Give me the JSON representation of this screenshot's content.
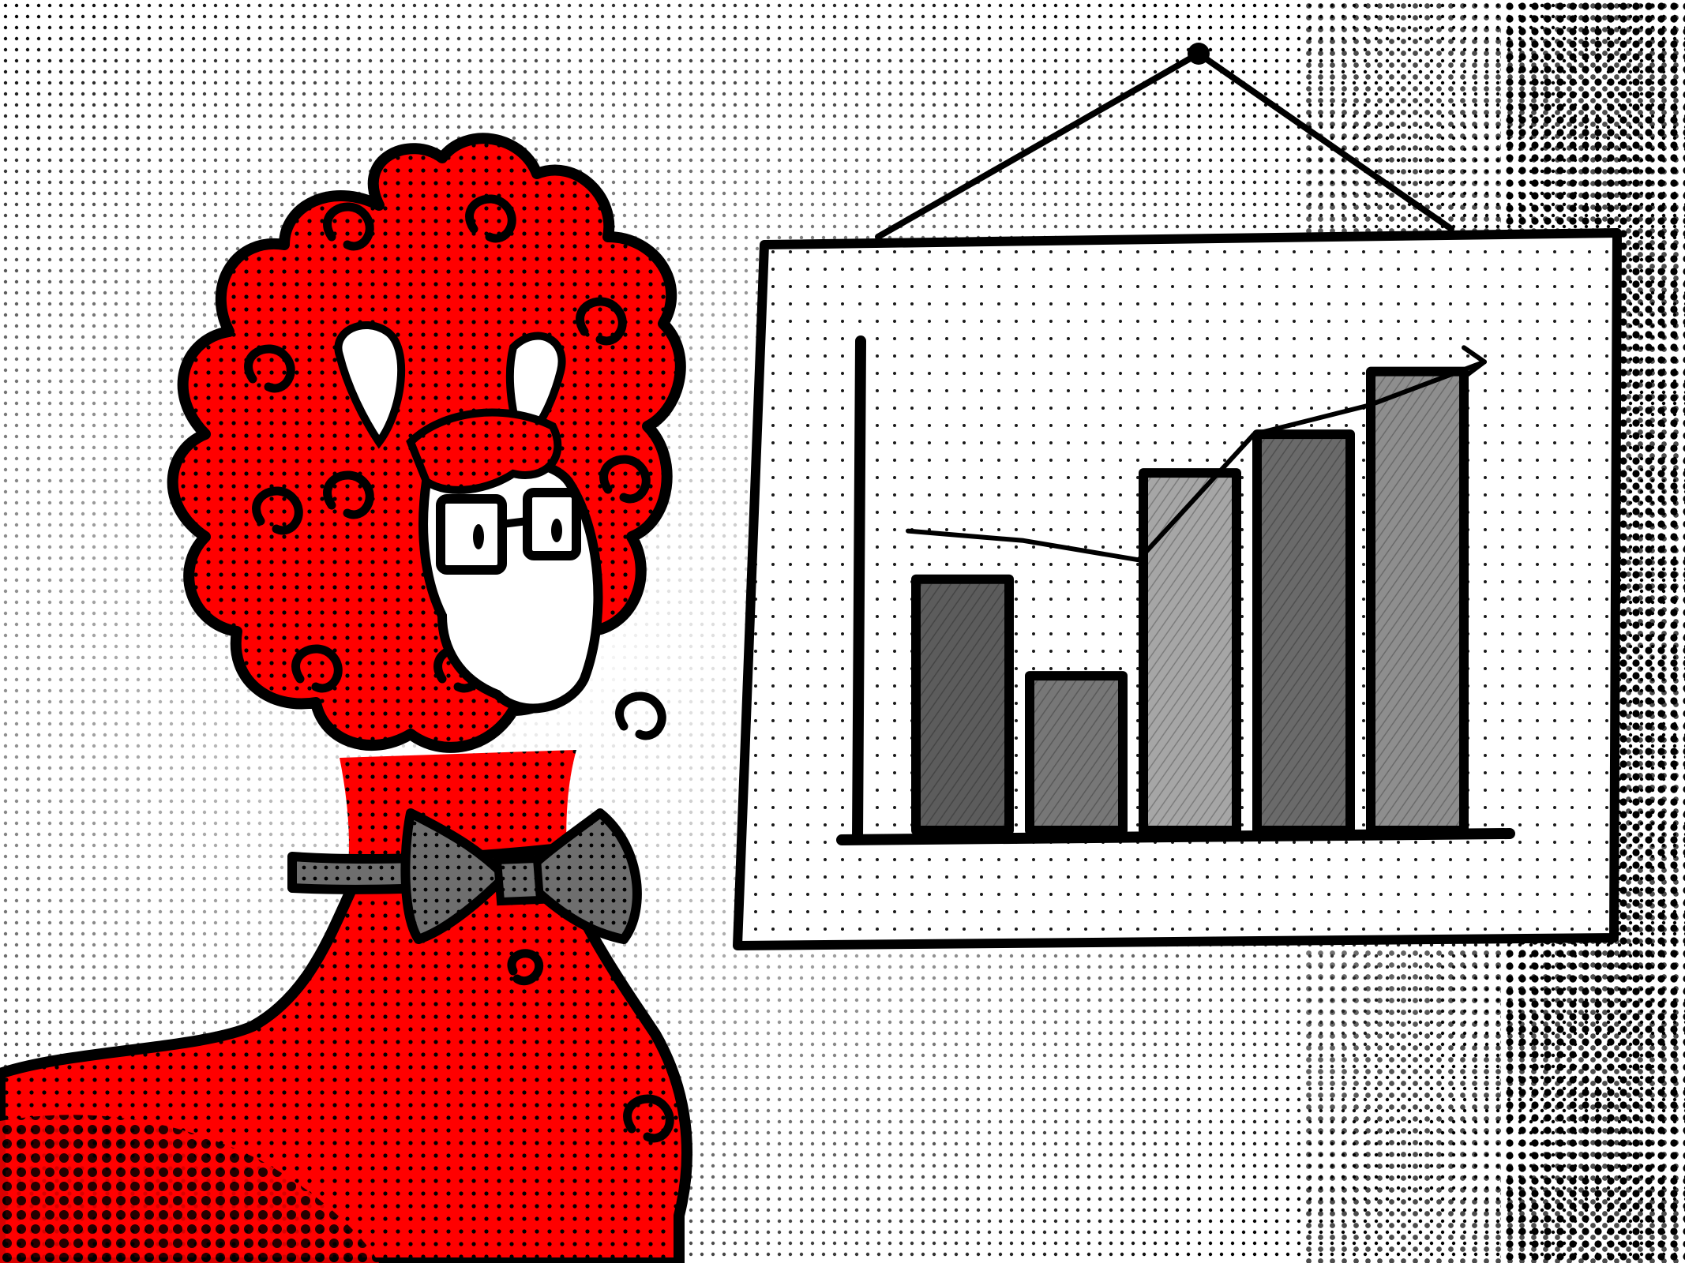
{
  "illustration": {
    "colors": {
      "background": "#ffffff",
      "halftone_dot": "#000000",
      "character_fill": "#ff0000",
      "outline": "#000000",
      "bowtie": "#6e6e6e",
      "face": "#ffffff",
      "board": "#ffffff"
    },
    "icons": [
      "red-sheep-character",
      "glasses-icon",
      "bowtie-icon",
      "hanging-board",
      "trend-arrow-icon"
    ]
  },
  "chart_data": {
    "type": "bar",
    "categories": [
      "",
      "",
      "",
      "",
      ""
    ],
    "values": [
      52,
      32,
      74,
      82,
      95
    ],
    "ylim": [
      0,
      100
    ],
    "bar_colors": [
      "#5c5c5c",
      "#777777",
      "#a6a6a6",
      "#6a6a6a",
      "#8e8e8e"
    ],
    "trend_line": [
      62,
      60,
      56,
      82,
      88,
      97
    ],
    "grid": false,
    "legend": "none"
  }
}
